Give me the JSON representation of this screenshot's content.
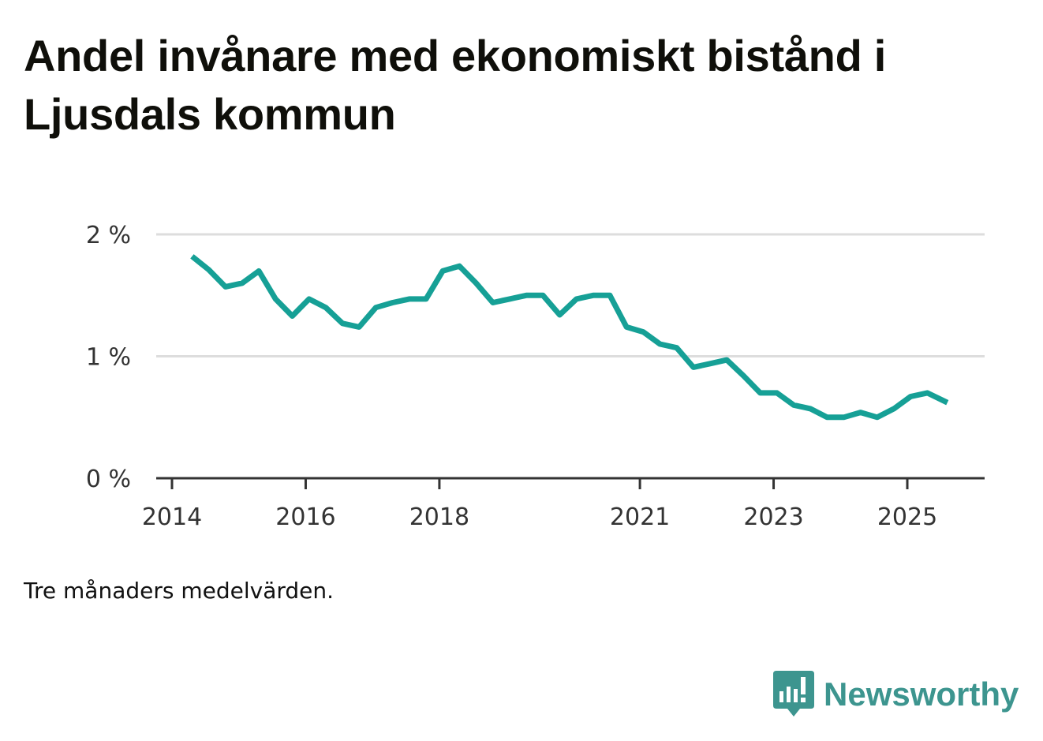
{
  "title": "Andel invånare med ekonomiskt bistånd i Ljusdals kommun",
  "note": "Tre månaders medelvärden.",
  "brand": {
    "name": "Newsworthy",
    "color": "#3d958f",
    "icon": "bar-chart-speech-bubble-icon"
  },
  "chart_data": {
    "type": "line",
    "title": "Andel invånare med ekonomiskt bistånd i Ljusdals kommun",
    "xlabel": "",
    "ylabel": "",
    "ylim": [
      0,
      2
    ],
    "xlim": [
      2014,
      2025.75
    ],
    "grid": true,
    "yticks": [
      {
        "value": 0,
        "label": "0 %"
      },
      {
        "value": 1,
        "label": "1 %"
      },
      {
        "value": 2,
        "label": "2 %"
      }
    ],
    "xticks": [
      {
        "value": 2014,
        "label": "2014"
      },
      {
        "value": 2016,
        "label": "2016"
      },
      {
        "value": 2018,
        "label": "2018"
      },
      {
        "value": 2021,
        "label": "2021"
      },
      {
        "value": 2023,
        "label": "2023"
      },
      {
        "value": 2025,
        "label": "2025"
      }
    ],
    "series": [
      {
        "name": "Andel invånare med ekonomiskt bistånd",
        "color": "#16a096",
        "x": [
          2014.3,
          2014.55,
          2014.8,
          2015.05,
          2015.3,
          2015.55,
          2015.8,
          2016.05,
          2016.3,
          2016.55,
          2016.8,
          2017.05,
          2017.3,
          2017.55,
          2017.8,
          2018.05,
          2018.3,
          2018.55,
          2018.8,
          2019.05,
          2019.3,
          2019.55,
          2019.8,
          2020.05,
          2020.3,
          2020.55,
          2020.8,
          2021.05,
          2021.3,
          2021.55,
          2021.8,
          2022.05,
          2022.3,
          2022.55,
          2022.8,
          2023.05,
          2023.3,
          2023.55,
          2023.8,
          2024.05,
          2024.3,
          2024.55,
          2024.8,
          2025.05,
          2025.3,
          2025.6
        ],
        "values": [
          1.82,
          1.71,
          1.57,
          1.6,
          1.7,
          1.47,
          1.33,
          1.47,
          1.4,
          1.27,
          1.24,
          1.4,
          1.44,
          1.47,
          1.47,
          1.7,
          1.74,
          1.6,
          1.44,
          1.47,
          1.5,
          1.5,
          1.34,
          1.47,
          1.5,
          1.5,
          1.24,
          1.2,
          1.1,
          1.07,
          0.91,
          0.94,
          0.97,
          0.84,
          0.7,
          0.7,
          0.6,
          0.57,
          0.5,
          0.5,
          0.54,
          0.5,
          0.57,
          0.67,
          0.7,
          0.62
        ]
      }
    ]
  }
}
